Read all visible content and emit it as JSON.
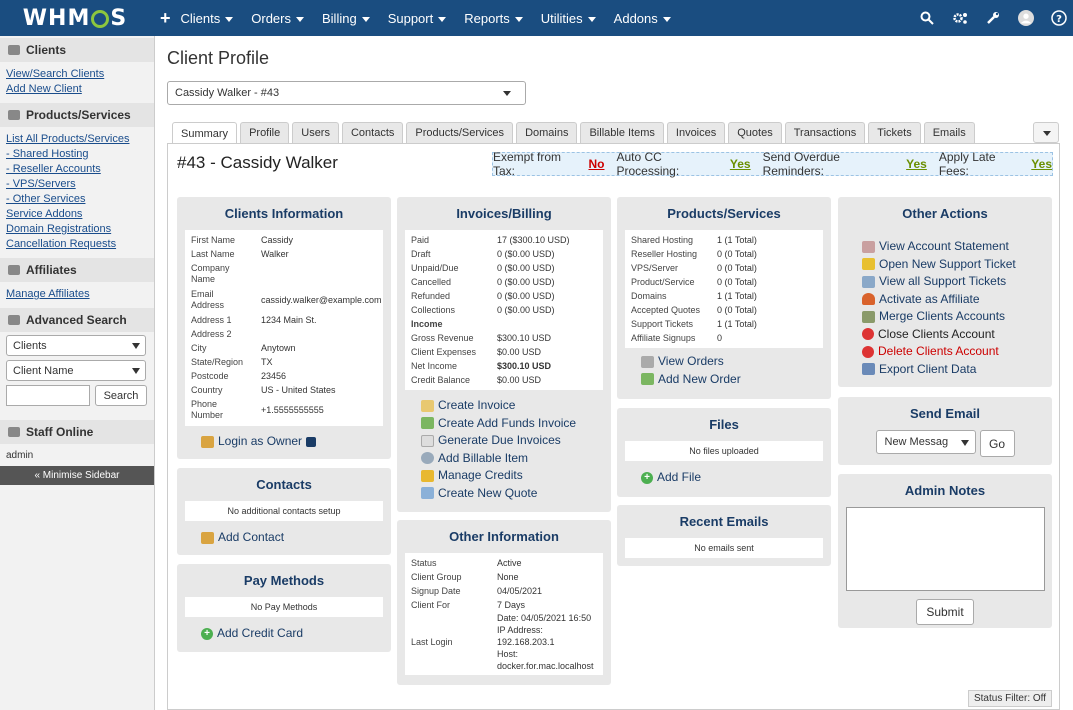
{
  "nav": {
    "logo": "WHMCS",
    "plus": "+",
    "items": [
      "Clients",
      "Orders",
      "Billing",
      "Support",
      "Reports",
      "Utilities",
      "Addons"
    ]
  },
  "sidebar": {
    "clients": {
      "title": "Clients",
      "links": [
        "View/Search Clients",
        "Add New Client"
      ]
    },
    "products": {
      "title": "Products/Services",
      "links": [
        "List All Products/Services",
        "- Shared Hosting",
        "- Reseller Accounts",
        "- VPS/Servers",
        "- Other Services",
        "Service Addons",
        "Domain Registrations",
        "Cancellation Requests"
      ]
    },
    "affiliates": {
      "title": "Affiliates",
      "links": [
        "Manage Affiliates"
      ]
    },
    "advanced": {
      "title": "Advanced Search",
      "type_value": "Clients",
      "field_value": "Client Name",
      "search_button": "Search"
    },
    "staff": {
      "title": "Staff Online",
      "user": "admin"
    },
    "minimise": "« Minimise Sidebar"
  },
  "page": {
    "title": "Client Profile",
    "client_select": "Cassidy Walker - #43",
    "tabs": [
      "Summary",
      "Profile",
      "Users",
      "Contacts",
      "Products/Services",
      "Domains",
      "Billable Items",
      "Invoices",
      "Quotes",
      "Transactions",
      "Tickets",
      "Emails"
    ],
    "client_heading": "#43 - Cassidy Walker",
    "taxbar": {
      "exempt_label": "Exempt from Tax:",
      "exempt_value": "No",
      "autocc_label": "Auto CC Processing:",
      "autocc_value": "Yes",
      "overdue_label": "Send Overdue Reminders:",
      "overdue_value": "Yes",
      "latefees_label": "Apply Late Fees:",
      "latefees_value": "Yes"
    },
    "status_filter": "Status Filter: Off"
  },
  "client_info": {
    "title": "Clients Information",
    "rows": [
      {
        "k": "First Name",
        "v": "Cassidy"
      },
      {
        "k": "Last Name",
        "v": "Walker"
      },
      {
        "k": "Company Name",
        "v": ""
      },
      {
        "k": "Email Address",
        "v": "cassidy.walker@example.com"
      },
      {
        "k": "Address 1",
        "v": "1234 Main St."
      },
      {
        "k": "Address 2",
        "v": ""
      },
      {
        "k": "City",
        "v": "Anytown"
      },
      {
        "k": "State/Region",
        "v": "TX"
      },
      {
        "k": "Postcode",
        "v": "23456"
      },
      {
        "k": "Country",
        "v": "US - United States"
      },
      {
        "k": "Phone Number",
        "v": "+1.5555555555"
      }
    ],
    "login_as_owner": "Login as Owner"
  },
  "contacts": {
    "title": "Contacts",
    "empty": "No additional contacts setup",
    "add": "Add Contact"
  },
  "pay_methods": {
    "title": "Pay Methods",
    "empty": "No Pay Methods",
    "add": "Add Credit Card"
  },
  "invoices": {
    "title": "Invoices/Billing",
    "rows": [
      {
        "k": "Paid",
        "v": "17 ($300.10 USD)"
      },
      {
        "k": "Draft",
        "v": "0 ($0.00 USD)"
      },
      {
        "k": "Unpaid/Due",
        "v": "0 ($0.00 USD)"
      },
      {
        "k": "Cancelled",
        "v": "0 ($0.00 USD)"
      },
      {
        "k": "Refunded",
        "v": "0 ($0.00 USD)"
      },
      {
        "k": "Collections",
        "v": "0 ($0.00 USD)"
      },
      {
        "k": "Income",
        "v": ""
      },
      {
        "k": "Gross Revenue",
        "v": "$300.10 USD"
      },
      {
        "k": "Client Expenses",
        "v": "$0.00 USD"
      },
      {
        "k": "Net Income",
        "v": "$300.10 USD"
      },
      {
        "k": "Credit Balance",
        "v": "$0.00 USD"
      }
    ],
    "actions": [
      "Create Invoice",
      "Create Add Funds Invoice",
      "Generate Due Invoices",
      "Add Billable Item",
      "Manage Credits",
      "Create New Quote"
    ]
  },
  "other_info": {
    "title": "Other Information",
    "rows": [
      {
        "k": "Status",
        "v": "Active"
      },
      {
        "k": "Client Group",
        "v": "None"
      },
      {
        "k": "Signup Date",
        "v": "04/05/2021"
      },
      {
        "k": "Client For",
        "v": "7 Days"
      }
    ],
    "last_login_label": "Last Login",
    "last_login_lines": [
      "Date: 04/05/2021 16:50",
      "IP Address:",
      "192.168.203.1",
      "Host:",
      "docker.for.mac.localhost"
    ]
  },
  "products": {
    "title": "Products/Services",
    "rows": [
      {
        "k": "Shared Hosting",
        "v": "1 (1 Total)"
      },
      {
        "k": "Reseller Hosting",
        "v": "0 (0 Total)"
      },
      {
        "k": "VPS/Server",
        "v": "0 (0 Total)"
      },
      {
        "k": "Product/Service",
        "v": "0 (0 Total)"
      },
      {
        "k": "Domains",
        "v": "1 (1 Total)"
      },
      {
        "k": "Accepted Quotes",
        "v": "0 (0 Total)"
      },
      {
        "k": "Support Tickets",
        "v": "1 (1 Total)"
      },
      {
        "k": "Affiliate Signups",
        "v": "0"
      }
    ],
    "actions": [
      "View Orders",
      "Add New Order"
    ]
  },
  "files": {
    "title": "Files",
    "empty": "No files uploaded",
    "add": "Add File"
  },
  "recent_emails": {
    "title": "Recent Emails",
    "empty": "No emails sent"
  },
  "other_actions": {
    "title": "Other Actions",
    "actions": [
      "View Account Statement",
      "Open New Support Ticket",
      "View all Support Tickets",
      "Activate as Affiliate",
      "Merge Clients Accounts",
      "Close Clients Account",
      "Delete Clients Account",
      "Export Client Data"
    ]
  },
  "send_email": {
    "title": "Send Email",
    "select_value": "New Messag",
    "go": "Go"
  },
  "admin_notes": {
    "title": "Admin Notes",
    "submit": "Submit"
  }
}
